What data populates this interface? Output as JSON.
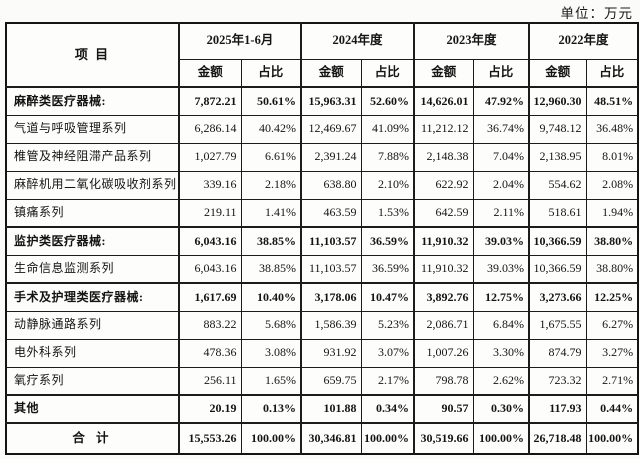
{
  "unit_label": "单位：万元",
  "table": {
    "item_header": "项  目",
    "amount_header": "金额",
    "ratio_header": "占比",
    "periods": [
      "2025年1-6月",
      "2024年度",
      "2023年度",
      "2022年度"
    ],
    "rows": [
      {
        "label": "麻醉类医疗器械:",
        "bold": true,
        "thick": true,
        "center": false,
        "values": [
          "7,872.21",
          "50.61%",
          "15,963.31",
          "52.60%",
          "14,626.01",
          "47.92%",
          "12,960.30",
          "48.51%"
        ]
      },
      {
        "label": "气道与呼吸管理系列",
        "bold": false,
        "thick": false,
        "center": false,
        "values": [
          "6,286.14",
          "40.42%",
          "12,469.67",
          "41.09%",
          "11,212.12",
          "36.74%",
          "9,748.12",
          "36.48%"
        ]
      },
      {
        "label": "椎管及神经阻滞产品系列",
        "bold": false,
        "thick": false,
        "center": false,
        "values": [
          "1,027.79",
          "6.61%",
          "2,391.24",
          "7.88%",
          "2,148.38",
          "7.04%",
          "2,138.95",
          "8.01%"
        ]
      },
      {
        "label": "麻醉机用二氧化碳吸收剂系列",
        "bold": false,
        "thick": false,
        "center": false,
        "values": [
          "339.16",
          "2.18%",
          "638.80",
          "2.10%",
          "622.92",
          "2.04%",
          "554.62",
          "2.08%"
        ]
      },
      {
        "label": "镇痛系列",
        "bold": false,
        "thick": false,
        "center": false,
        "values": [
          "219.11",
          "1.41%",
          "463.59",
          "1.53%",
          "642.59",
          "2.11%",
          "518.61",
          "1.94%"
        ]
      },
      {
        "label": "监护类医疗器械:",
        "bold": true,
        "thick": true,
        "center": false,
        "values": [
          "6,043.16",
          "38.85%",
          "11,103.57",
          "36.59%",
          "11,910.32",
          "39.03%",
          "10,366.59",
          "38.80%"
        ]
      },
      {
        "label": "生命信息监测系列",
        "bold": false,
        "thick": false,
        "center": false,
        "values": [
          "6,043.16",
          "38.85%",
          "11,103.57",
          "36.59%",
          "11,910.32",
          "39.03%",
          "10,366.59",
          "38.80%"
        ]
      },
      {
        "label": "手术及护理类医疗器械:",
        "bold": true,
        "thick": true,
        "center": false,
        "values": [
          "1,617.69",
          "10.40%",
          "3,178.06",
          "10.47%",
          "3,892.76",
          "12.75%",
          "3,273.66",
          "12.25%"
        ]
      },
      {
        "label": "动静脉通路系列",
        "bold": false,
        "thick": false,
        "center": false,
        "values": [
          "883.22",
          "5.68%",
          "1,586.39",
          "5.23%",
          "2,086.71",
          "6.84%",
          "1,675.55",
          "6.27%"
        ]
      },
      {
        "label": "电外科系列",
        "bold": false,
        "thick": false,
        "center": false,
        "values": [
          "478.36",
          "3.08%",
          "931.92",
          "3.07%",
          "1,007.26",
          "3.30%",
          "874.79",
          "3.27%"
        ]
      },
      {
        "label": "氧疗系列",
        "bold": false,
        "thick": false,
        "center": false,
        "values": [
          "256.11",
          "1.65%",
          "659.75",
          "2.17%",
          "798.78",
          "2.62%",
          "723.32",
          "2.71%"
        ]
      },
      {
        "label": "其他",
        "bold": true,
        "thick": true,
        "center": false,
        "values": [
          "20.19",
          "0.13%",
          "101.88",
          "0.34%",
          "90.57",
          "0.30%",
          "117.93",
          "0.44%"
        ]
      },
      {
        "label": "合  计",
        "bold": true,
        "thick": true,
        "center": true,
        "total": true,
        "values": [
          "15,553.26",
          "100.00%",
          "30,346.81",
          "100.00%",
          "30,519.66",
          "100.00%",
          "26,718.48",
          "100.00%"
        ]
      }
    ]
  }
}
